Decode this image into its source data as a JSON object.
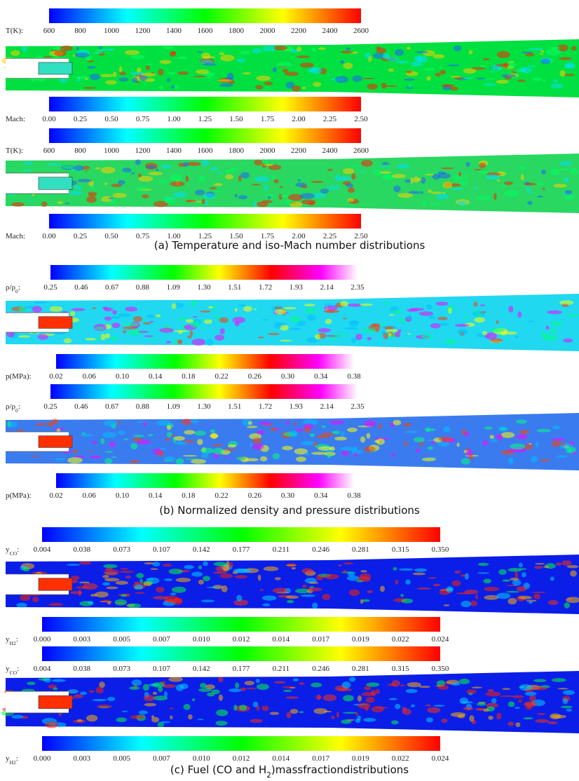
{
  "panels": [
    {
      "colorbars": [
        {
          "label": {
            "text": "T(K):"
          },
          "ticks": [
            "600",
            "800",
            "1000",
            "1200",
            "1400",
            "1600",
            "1800",
            "2000",
            "2200",
            "2400",
            "2600"
          ]
        },
        {
          "label": {
            "text": "Mach:"
          },
          "ticks": [
            "0.00",
            "0.25",
            "0.50",
            "0.75",
            "1.00",
            "1.25",
            "1.50",
            "1.75",
            "2.00",
            "2.25",
            "2.50"
          ]
        },
        {
          "label": {
            "text": "T(K):"
          },
          "ticks": [
            "600",
            "800",
            "1000",
            "1200",
            "1400",
            "1600",
            "1800",
            "2000",
            "2200",
            "2400",
            "2600"
          ]
        },
        {
          "label": {
            "text": "Mach:"
          },
          "ticks": [
            "0.00",
            "0.25",
            "0.50",
            "0.75",
            "1.00",
            "1.25",
            "1.50",
            "1.75",
            "2.00",
            "2.25",
            "2.50"
          ]
        }
      ],
      "caption": {
        "text": "(a)   Temperature and iso-Mach number distributions"
      }
    },
    {
      "colorbars": [
        {
          "label": {
            "text": "ρ/ρ",
            "sub": "0",
            "suffix": ":"
          },
          "ticks": [
            "0.25",
            "0.46",
            "0.67",
            "0.88",
            "1.09",
            "1.30",
            "1.51",
            "1.72",
            "1.93",
            "2.14",
            "2.35"
          ]
        },
        {
          "label": {
            "text": "p(MPa):"
          },
          "ticks": [
            "0.02",
            "0.06",
            "0.10",
            "0.14",
            "0.18",
            "0.22",
            "0.26",
            "0.30",
            "0.34",
            "0.38"
          ]
        },
        {
          "label": {
            "text": "ρ/ρ",
            "sub": "0",
            "suffix": ":"
          },
          "ticks": [
            "0.25",
            "0.46",
            "0.67",
            "0.88",
            "1.09",
            "1.30",
            "1.51",
            "1.72",
            "1.93",
            "2.14",
            "2.35"
          ]
        },
        {
          "label": {
            "text": "p(MPa):"
          },
          "ticks": [
            "0.02",
            "0.06",
            "0.10",
            "0.14",
            "0.18",
            "0.22",
            "0.26",
            "0.30",
            "0.34",
            "0.38"
          ]
        }
      ],
      "caption": {
        "text": "(b)   Normalized density and pressure distributions"
      }
    },
    {
      "colorbars": [
        {
          "label": {
            "text": "y",
            "sub": "CO",
            "suffix": ":"
          },
          "ticks": [
            "0.004",
            "0.038",
            "0.073",
            "0.107",
            "0.142",
            "0.177",
            "0.211",
            "0.246",
            "0.281",
            "0.315",
            "0.350"
          ]
        },
        {
          "label": {
            "text": "y",
            "sub": "H2",
            "suffix": ":"
          },
          "ticks": [
            "0.000",
            "0.003",
            "0.005",
            "0.007",
            "0.010",
            "0.012",
            "0.014",
            "0.017",
            "0.019",
            "0.022",
            "0.024"
          ]
        },
        {
          "label": {
            "text": "y",
            "sub": "CO",
            "suffix": ":"
          },
          "ticks": [
            "0.004",
            "0.038",
            "0.073",
            "0.107",
            "0.142",
            "0.177",
            "0.211",
            "0.246",
            "0.281",
            "0.315",
            "0.350"
          ]
        },
        {
          "label": {
            "text": "y",
            "sub": "H2",
            "suffix": ":"
          },
          "ticks": [
            "0.000",
            "0.003",
            "0.005",
            "0.007",
            "0.010",
            "0.012",
            "0.014",
            "0.017",
            "0.019",
            "0.022",
            "0.024"
          ]
        }
      ],
      "caption": {
        "text": "(c) Fuel (CO and H",
        "sub": "2",
        "suffix": ")massfractiondistributions"
      }
    }
  ]
}
